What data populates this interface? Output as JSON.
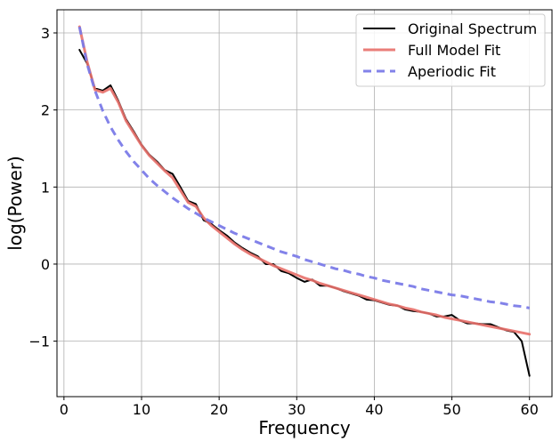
{
  "chart_data": {
    "type": "line",
    "title": "",
    "xlabel": "Frequency",
    "ylabel": "log(Power)",
    "xlim": [
      -0.9,
      62.9
    ],
    "ylim": [
      -1.72,
      3.3
    ],
    "xticks": [
      0,
      10,
      20,
      30,
      40,
      50,
      60
    ],
    "yticks": [
      -1,
      0,
      1,
      2,
      3
    ],
    "ytick_labels": [
      "−1",
      "0",
      "1",
      "2",
      "3"
    ],
    "grid": true,
    "legend_position": "top-right",
    "series": [
      {
        "name": "Original Spectrum",
        "color": "#000000",
        "style": "solid",
        "x": [
          2,
          3,
          4,
          5,
          6,
          7,
          8,
          9,
          10,
          11,
          12,
          13,
          14,
          15,
          16,
          17,
          18,
          19,
          20,
          21,
          22,
          23,
          24,
          25,
          26,
          27,
          28,
          29,
          30,
          31,
          32,
          33,
          34,
          35,
          36,
          37,
          38,
          39,
          40,
          41,
          42,
          43,
          44,
          45,
          46,
          47,
          48,
          49,
          50,
          51,
          52,
          53,
          54,
          55,
          56,
          57,
          58,
          59,
          60
        ],
        "y": [
          2.78,
          2.6,
          2.28,
          2.25,
          2.32,
          2.12,
          1.88,
          1.72,
          1.55,
          1.42,
          1.33,
          1.22,
          1.17,
          1.0,
          0.82,
          0.78,
          0.57,
          0.52,
          0.44,
          0.37,
          0.28,
          0.21,
          0.15,
          0.1,
          0.0,
          0.0,
          -0.09,
          -0.12,
          -0.18,
          -0.23,
          -0.2,
          -0.28,
          -0.28,
          -0.31,
          -0.35,
          -0.38,
          -0.41,
          -0.46,
          -0.47,
          -0.5,
          -0.53,
          -0.54,
          -0.59,
          -0.61,
          -0.62,
          -0.64,
          -0.68,
          -0.68,
          -0.66,
          -0.73,
          -0.77,
          -0.77,
          -0.78,
          -0.78,
          -0.82,
          -0.86,
          -0.88,
          -1.0,
          -1.45
        ]
      },
      {
        "name": "Full Model Fit",
        "color": "#e8706a",
        "style": "solid",
        "x": [
          2,
          3,
          4,
          5,
          6,
          7,
          8,
          9,
          10,
          11,
          12,
          13,
          14,
          15,
          16,
          17,
          18,
          19,
          20,
          21,
          22,
          23,
          24,
          25,
          26,
          27,
          28,
          29,
          30,
          31,
          32,
          33,
          34,
          35,
          36,
          37,
          38,
          39,
          40,
          41,
          42,
          43,
          44,
          45,
          46,
          47,
          48,
          49,
          50,
          51,
          52,
          53,
          54,
          55,
          56,
          57,
          58,
          59,
          60
        ],
        "y": [
          3.08,
          2.62,
          2.26,
          2.23,
          2.28,
          2.1,
          1.86,
          1.7,
          1.54,
          1.41,
          1.31,
          1.21,
          1.12,
          0.96,
          0.8,
          0.75,
          0.6,
          0.5,
          0.42,
          0.34,
          0.26,
          0.19,
          0.13,
          0.08,
          0.03,
          -0.02,
          -0.06,
          -0.1,
          -0.14,
          -0.18,
          -0.21,
          -0.25,
          -0.28,
          -0.31,
          -0.34,
          -0.37,
          -0.4,
          -0.43,
          -0.46,
          -0.49,
          -0.52,
          -0.54,
          -0.57,
          -0.59,
          -0.62,
          -0.64,
          -0.66,
          -0.69,
          -0.71,
          -0.73,
          -0.75,
          -0.77,
          -0.79,
          -0.81,
          -0.83,
          -0.85,
          -0.87,
          -0.89,
          -0.91
        ]
      },
      {
        "name": "Aperiodic Fit",
        "color": "#7b7be8",
        "style": "dashed",
        "x": [
          2,
          3,
          4,
          5,
          6,
          7,
          8,
          9,
          10,
          11,
          12,
          13,
          14,
          15,
          16,
          17,
          18,
          19,
          20,
          21,
          22,
          23,
          24,
          25,
          26,
          27,
          28,
          29,
          30,
          31,
          32,
          33,
          34,
          35,
          36,
          37,
          38,
          39,
          40,
          41,
          42,
          43,
          44,
          45,
          46,
          47,
          48,
          49,
          50,
          51,
          52,
          53,
          54,
          55,
          56,
          57,
          58,
          59,
          60
        ],
        "y": [
          3.08,
          2.59,
          2.25,
          1.99,
          1.78,
          1.61,
          1.46,
          1.33,
          1.22,
          1.11,
          1.02,
          0.94,
          0.86,
          0.79,
          0.72,
          0.66,
          0.6,
          0.55,
          0.5,
          0.45,
          0.4,
          0.36,
          0.32,
          0.28,
          0.24,
          0.2,
          0.16,
          0.13,
          0.1,
          0.06,
          0.03,
          0.0,
          -0.03,
          -0.06,
          -0.08,
          -0.11,
          -0.13,
          -0.16,
          -0.18,
          -0.21,
          -0.23,
          -0.25,
          -0.27,
          -0.29,
          -0.32,
          -0.34,
          -0.36,
          -0.38,
          -0.4,
          -0.41,
          -0.43,
          -0.45,
          -0.47,
          -0.49,
          -0.5,
          -0.52,
          -0.54,
          -0.55,
          -0.57
        ]
      }
    ]
  }
}
